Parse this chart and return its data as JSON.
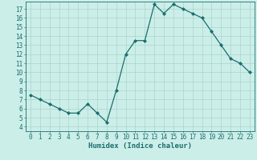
{
  "x": [
    0,
    1,
    2,
    3,
    4,
    5,
    6,
    7,
    8,
    9,
    10,
    11,
    12,
    13,
    14,
    15,
    16,
    17,
    18,
    19,
    20,
    21,
    22,
    23
  ],
  "y": [
    7.5,
    7.0,
    6.5,
    6.0,
    5.5,
    5.5,
    6.5,
    5.5,
    4.5,
    8.0,
    12.0,
    13.5,
    13.5,
    17.5,
    16.5,
    17.5,
    17.0,
    16.5,
    16.0,
    14.5,
    13.0,
    11.5,
    11.0,
    10.0
  ],
  "line_color": "#1a6e6e",
  "marker": "D",
  "marker_size": 2,
  "bg_color": "#cceee8",
  "grid_color": "#aad4ce",
  "xlabel": "Humidex (Indice chaleur)",
  "xlim": [
    -0.5,
    23.5
  ],
  "ylim": [
    3.5,
    17.8
  ],
  "yticks": [
    4,
    5,
    6,
    7,
    8,
    9,
    10,
    11,
    12,
    13,
    14,
    15,
    16,
    17
  ],
  "xticks": [
    0,
    1,
    2,
    3,
    4,
    5,
    6,
    7,
    8,
    9,
    10,
    11,
    12,
    13,
    14,
    15,
    16,
    17,
    18,
    19,
    20,
    21,
    22,
    23
  ],
  "tick_label_size": 5.5,
  "xlabel_size": 6.5
}
